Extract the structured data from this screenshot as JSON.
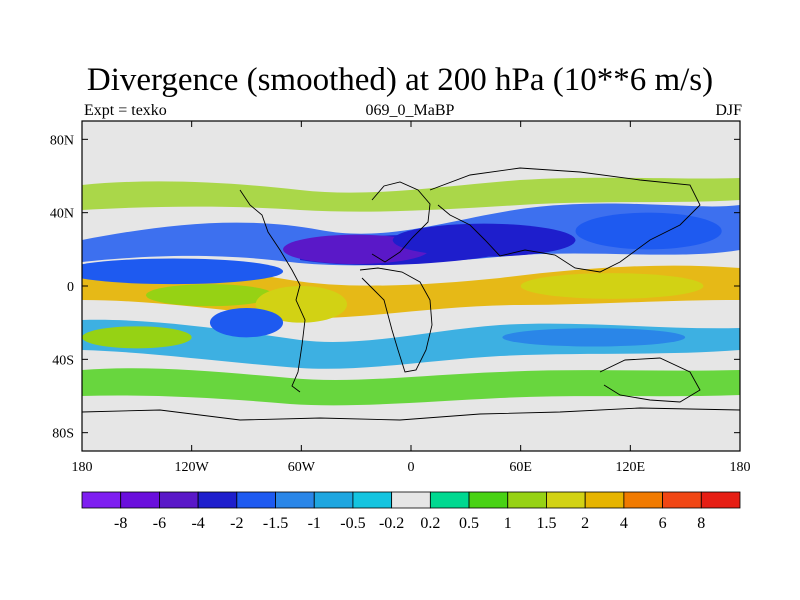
{
  "title": "Divergence (smoothed) at 200 hPa (10**6 m/s)",
  "left_subtitle": "Expt = texko",
  "center_subtitle": "069_0_MaBP",
  "right_subtitle": "DJF",
  "colors": {
    "background_gray": "#e6e6e6",
    "coast": "#000000"
  },
  "map": {
    "lon_ticks": [
      {
        "lon": -180,
        "label": "180"
      },
      {
        "lon": -120,
        "label": "120W"
      },
      {
        "lon": -60,
        "label": "60W"
      },
      {
        "lon": 0,
        "label": "0"
      },
      {
        "lon": 60,
        "label": "60E"
      },
      {
        "lon": 120,
        "label": "120E"
      },
      {
        "lon": 180,
        "label": "180"
      }
    ],
    "lat_ticks": [
      {
        "lat": 80,
        "label": "80N"
      },
      {
        "lat": 40,
        "label": "40N"
      },
      {
        "lat": 0,
        "label": "0"
      },
      {
        "lat": -40,
        "label": "40S"
      },
      {
        "lat": -80,
        "label": "80S"
      }
    ],
    "lat_range": [
      -90,
      90
    ],
    "lon_range": [
      -180,
      180
    ]
  },
  "colorbar": {
    "colors": [
      "#7e1ef0",
      "#6a0fdc",
      "#5a18c8",
      "#1e1ecc",
      "#1e5af0",
      "#2a86e8",
      "#1ea6e0",
      "#14c4e0",
      "#e6e6e6",
      "#00d890",
      "#48d214",
      "#96d214",
      "#d2d214",
      "#e6b400",
      "#f07a00",
      "#f04614",
      "#e61e14"
    ],
    "labels": [
      "-8",
      "-6",
      "-4",
      "-2",
      "-1.5",
      "-1",
      "-0.5",
      "-0.2",
      "0.2",
      "0.5",
      "1",
      "1.5",
      "2",
      "4",
      "6",
      "8"
    ]
  },
  "divergence_blobs": [
    {
      "lon": -130,
      "lat": 8,
      "rx": 60,
      "ry": 7,
      "level": -1.5
    },
    {
      "lon": -30,
      "lat": 20,
      "rx": 40,
      "ry": 8,
      "level": -4
    },
    {
      "lon": 40,
      "lat": 25,
      "rx": 50,
      "ry": 9,
      "level": -2
    },
    {
      "lon": 130,
      "lat": 30,
      "rx": 40,
      "ry": 10,
      "level": -1.5
    },
    {
      "lon": -110,
      "lat": -5,
      "rx": 35,
      "ry": 6,
      "level": 1.5
    },
    {
      "lon": -60,
      "lat": -10,
      "rx": 25,
      "ry": 10,
      "level": 2
    },
    {
      "lon": 110,
      "lat": 0,
      "rx": 50,
      "ry": 7,
      "level": 2
    },
    {
      "lon": -150,
      "lat": -28,
      "rx": 30,
      "ry": 6,
      "level": 1.5
    },
    {
      "lon": 100,
      "lat": -28,
      "rx": 50,
      "ry": 5,
      "level": -1
    },
    {
      "lon": -90,
      "lat": -20,
      "rx": 20,
      "ry": 8,
      "level": -1.5
    }
  ]
}
